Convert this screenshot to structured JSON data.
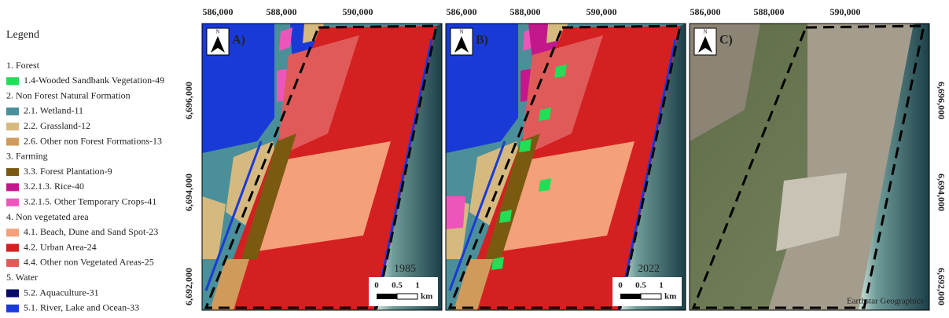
{
  "legend": {
    "title": "Legend",
    "groups": [
      {
        "title": "1. Forest",
        "items": [
          {
            "label": "1.4-Wooded Sandbank Vegetation-49",
            "color": "#22dd55"
          }
        ]
      },
      {
        "title": "2. Non Forest Natural Formation",
        "items": [
          {
            "label": "2.1. Wetland-11",
            "color": "#4a8f99"
          },
          {
            "label": "2.2. Grassland-12",
            "color": "#d6b97e"
          },
          {
            "label": "2.6. Other non Forest Formations-13",
            "color": "#d09a5a"
          }
        ]
      },
      {
        "title": "3. Farming",
        "items": [
          {
            "label": "3.3. Forest Plantation-9",
            "color": "#7a5a10"
          },
          {
            "label": "3.2.1.3. Rice-40",
            "color": "#c2188c"
          },
          {
            "label": "3.2.1.5. Other Temporary Crops-41",
            "color": "#ee55bb"
          }
        ]
      },
      {
        "title": "4. Non vegetated area",
        "items": [
          {
            "label": "4.1. Beach, Dune and Sand Spot-23",
            "color": "#f4a07a"
          },
          {
            "label": "4.2. Urban Area-24",
            "color": "#d42020"
          },
          {
            "label": "4.4. Other non Vegetated Areas-25",
            "color": "#e05a5a"
          }
        ]
      },
      {
        "title": "5. Water",
        "items": [
          {
            "label": "5.2. Aquaculture-31",
            "color": "#0a0a6a"
          },
          {
            "label": "5.1. River, Lake and Ocean-33",
            "color": "#1a3ad8"
          }
        ]
      }
    ]
  },
  "x_ticks": [
    "586,000",
    "588,000",
    "590,000"
  ],
  "y_ticks": [
    "6,696,000",
    "6,694,000",
    "6,692,000"
  ],
  "north": "N",
  "scale_bar": {
    "ticks": [
      "0",
      "0.5",
      "1"
    ],
    "unit": "km"
  },
  "panels": [
    {
      "label": "A)",
      "year": "1985"
    },
    {
      "label": "B)",
      "year": "2022"
    },
    {
      "label": "C)",
      "credit": "Earthstar Geographics"
    }
  ]
}
